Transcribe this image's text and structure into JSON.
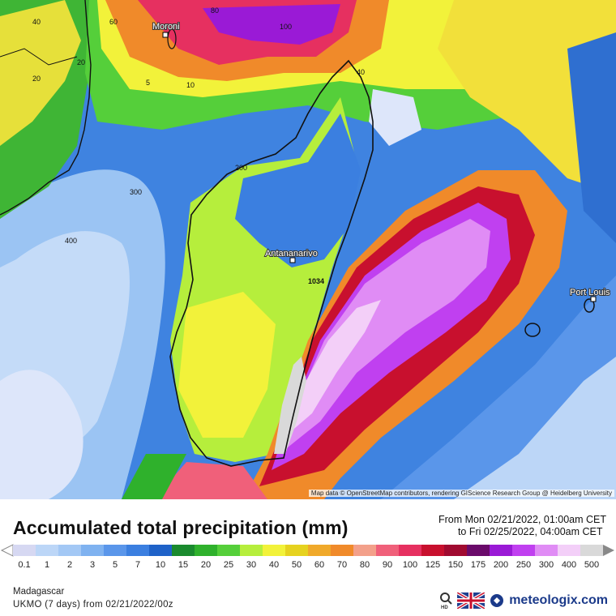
{
  "map": {
    "cities": [
      {
        "name": "Moroni"
      },
      {
        "name": "Antananarivo"
      },
      {
        "name": "Port Louis"
      }
    ],
    "contour_labels": [
      "40",
      "60",
      "80",
      "100",
      "20",
      "5",
      "10",
      "40",
      "20",
      "200",
      "300",
      "400",
      "1034"
    ],
    "attribution": "Map data © OpenStreetMap contributors, rendering GIScience Research Group @ Heidelberg University"
  },
  "header": {
    "title": "Accumulated total precipitation (mm)",
    "period_from": "From Mon 02/21/2022, 01:00am CET",
    "period_to": "to Fri 02/25/2022, 04:00am CET"
  },
  "legend": {
    "values": [
      "0.1",
      "1",
      "2",
      "3",
      "5",
      "7",
      "10",
      "15",
      "20",
      "25",
      "30",
      "40",
      "50",
      "60",
      "70",
      "80",
      "90",
      "100",
      "125",
      "150",
      "175",
      "200",
      "250",
      "300",
      "400",
      "500"
    ],
    "colors": [
      "#d6d8f2",
      "#bcd6f7",
      "#a3c8f5",
      "#7fb2f0",
      "#5a96ea",
      "#3b7fe0",
      "#1f62c8",
      "#1a8a2e",
      "#2fb12c",
      "#55cf3a",
      "#b6ee3c",
      "#f2f23a",
      "#e6d21f",
      "#f0a92a",
      "#f08a2a",
      "#f3a08a",
      "#f0607a",
      "#e63060",
      "#c8102e",
      "#a00a30",
      "#6a0a6a",
      "#9a1ad6",
      "#c040f0",
      "#e08cf5",
      "#f3cff8",
      "#d9d9d9"
    ]
  },
  "footer": {
    "region": "Madagascar",
    "model": "UKMO (7 days) from  02/21/2022/00z",
    "brand": "meteologix.com"
  }
}
